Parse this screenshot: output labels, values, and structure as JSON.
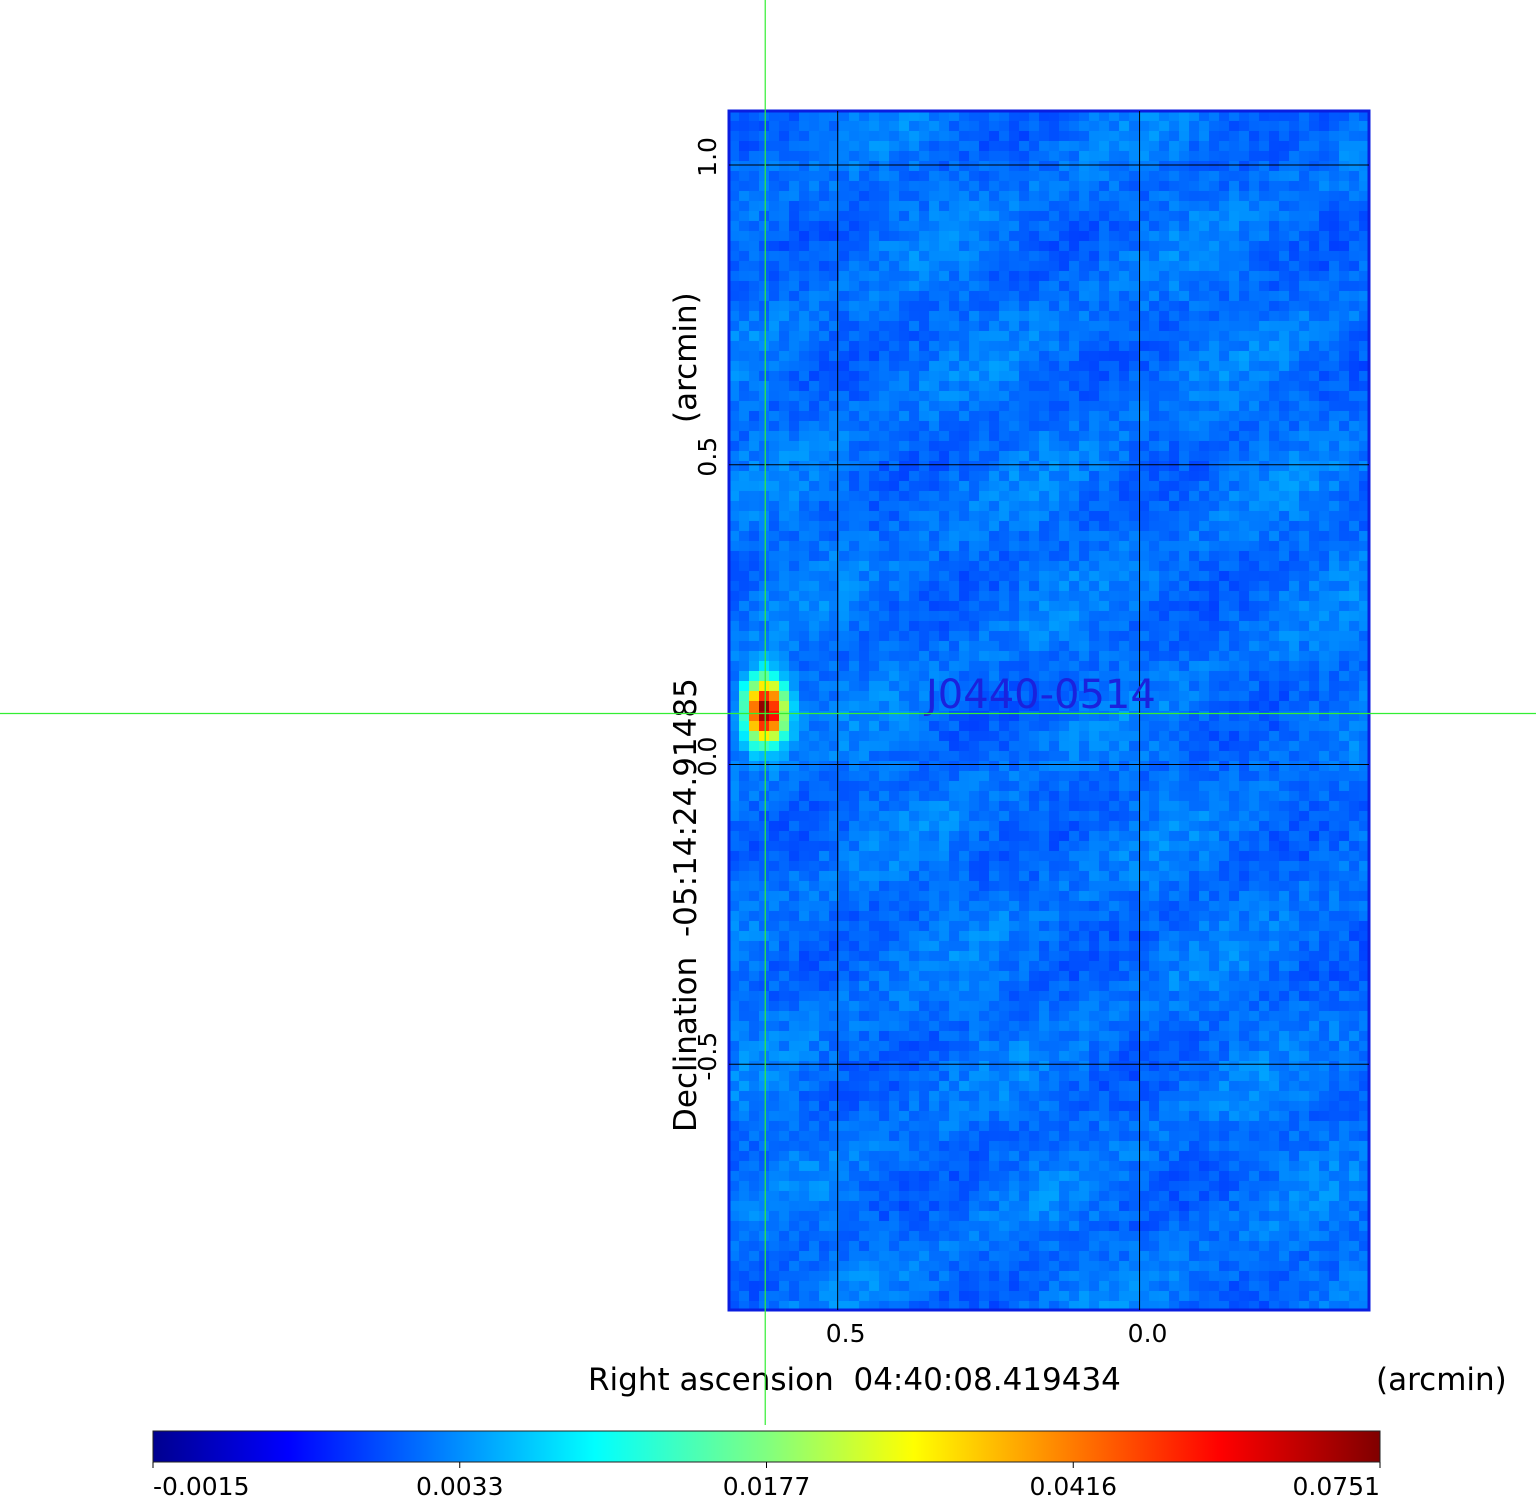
{
  "chart_data": {
    "type": "heatmap",
    "title": "",
    "source_label": "J0440-0514",
    "xlabel": "Right ascension  04:40:08.419434",
    "xunit": "(arcmin)",
    "ylabel": "Declination  -05:14:24.91485",
    "yunit": "(arcmin)",
    "xlim": [
      0.68,
      -0.38
    ],
    "ylim": [
      -0.91,
      1.09
    ],
    "x_ticks": [
      {
        "value": 0.5,
        "label": "0.5"
      },
      {
        "value": 0.0,
        "label": "0.0"
      }
    ],
    "y_ticks": [
      {
        "value": 1.0,
        "label": "1.0"
      },
      {
        "value": 0.5,
        "label": "0.5"
      },
      {
        "value": 0.0,
        "label": "0.0"
      },
      {
        "value": -0.5,
        "label": "-0.5"
      }
    ],
    "grid": true,
    "crosshair": {
      "x": 0.62,
      "y": 0.085
    },
    "peak": {
      "x": 0.62,
      "y": 0.09,
      "value": 0.0751
    },
    "colormap": "jet",
    "colorbar": {
      "position": "bottom",
      "ticks": [
        {
          "value": -0.0015,
          "label": "-0.0015"
        },
        {
          "value": 0.0033,
          "label": "0.0033"
        },
        {
          "value": 0.0177,
          "label": "0.0177"
        },
        {
          "value": 0.0416,
          "label": "0.0416"
        },
        {
          "value": 0.0751,
          "label": "0.0751"
        }
      ]
    },
    "colors": {
      "grid": "#000000",
      "crosshair": "#33ee33",
      "source_label": "#1a22dd",
      "frame": "#0a1ee0"
    }
  }
}
